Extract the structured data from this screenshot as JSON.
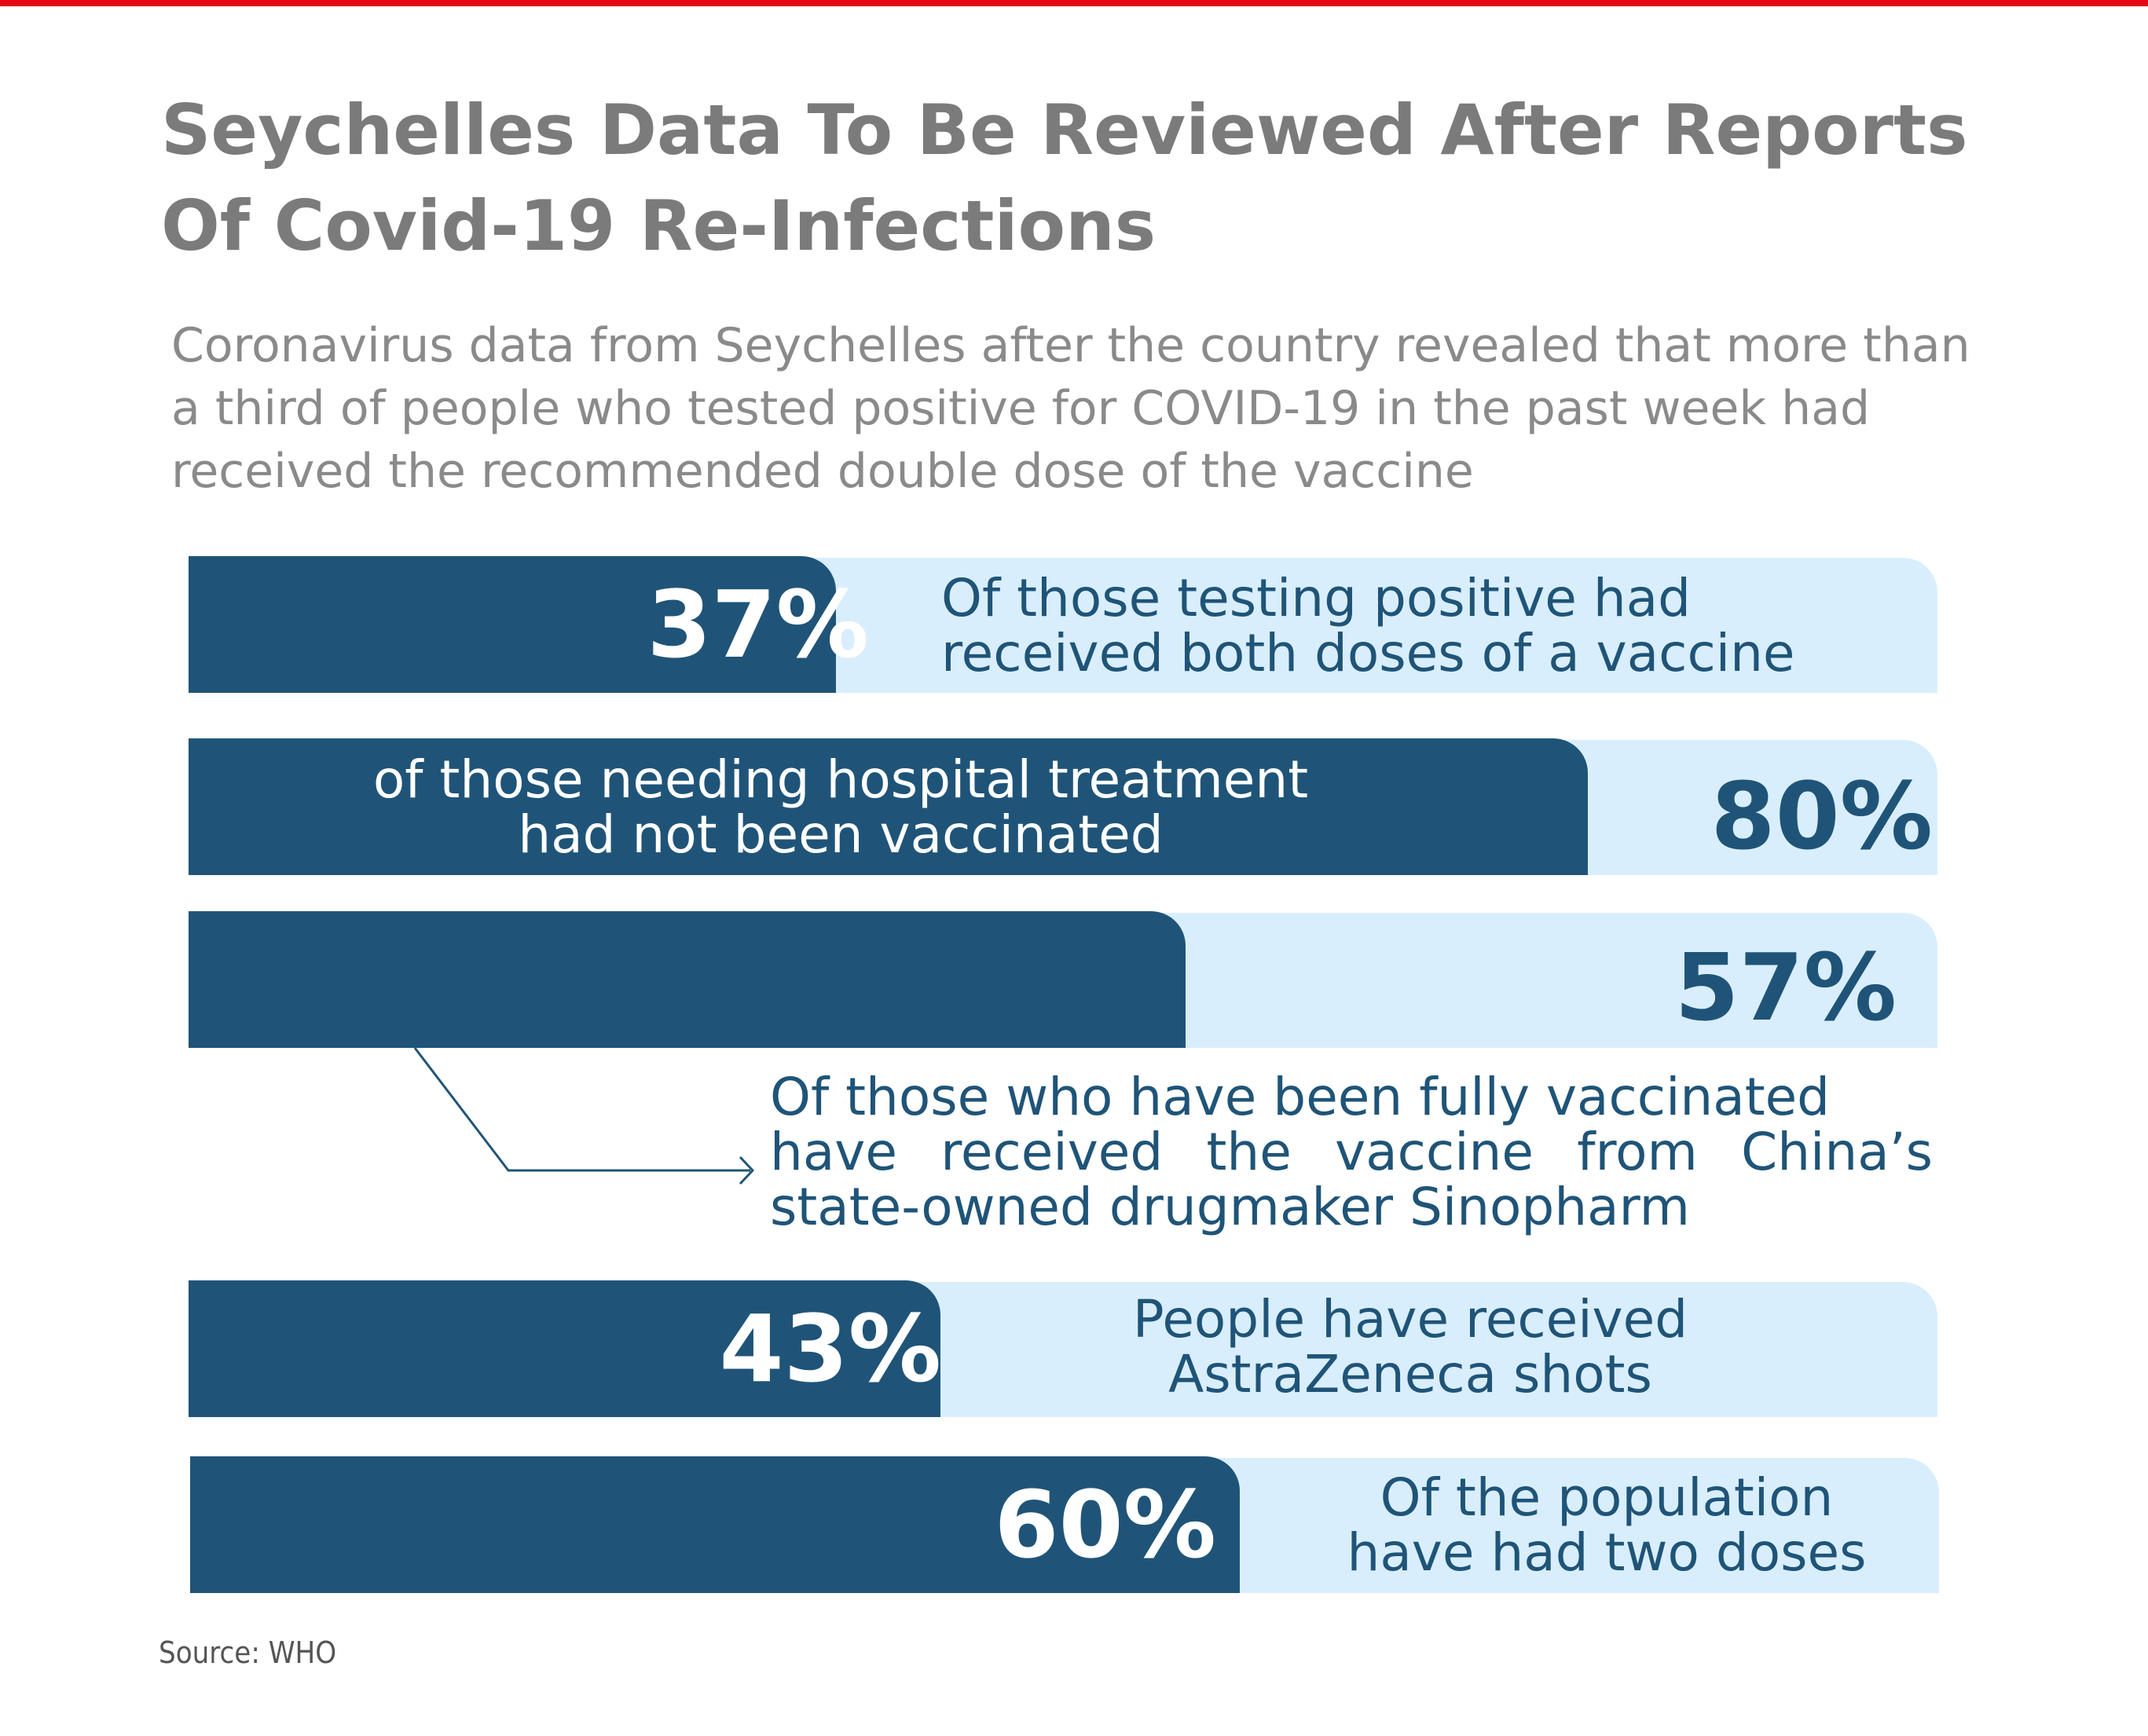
{
  "colors": {
    "accent_red": "#e30613",
    "bar_dark": "#1f5478",
    "bar_light": "#d9eefc",
    "title_gray": "#7b7b7b",
    "text_gray": "#8a8a8a",
    "white": "#ffffff"
  },
  "title": "Seychelles Data To Be Reviewed After Reports Of Covid-19 Re-Infections",
  "subtitle": "Coronavirus data from Seychelles after the country revealed that more than a third of people who tested positive for COVID-19 in the past week had received the recommended double dose of the vaccine",
  "source": "Source:  WHO",
  "chart_data": {
    "type": "bar",
    "orientation": "horizontal",
    "xlim": [
      0,
      100
    ],
    "grid": false,
    "title": "Seychelles Data To Be Reviewed After Reports Of Covid-19 Re-Infections",
    "categories": [
      "Of those testing positive had received both doses of a vaccine",
      "of those needing hospital treatment had not been vaccinated",
      "Of those who have been fully vaccinated have received the vaccine from China’s state-owned drugmaker Sinopharm",
      "People have received AstraZeneca shots",
      "Of the population have had two doses"
    ],
    "values": [
      37,
      80,
      57,
      43,
      60
    ],
    "bars": [
      {
        "value": 37,
        "label": "37%",
        "text_lines": [
          "Of those testing positive had",
          "received both doses of a vaccine"
        ]
      },
      {
        "value": 80,
        "label": "80%",
        "text_lines": [
          "of those needing hospital treatment",
          "had not been vaccinated"
        ]
      },
      {
        "value": 57,
        "label": "57%",
        "text_lines": [
          "Of those who have been fully vaccinated",
          "have received the vaccine from China’s",
          "state-owned drugmaker Sinopharm"
        ]
      },
      {
        "value": 43,
        "label": "43%",
        "text_lines": [
          "People have received",
          "AstraZeneca shots"
        ]
      },
      {
        "value": 60,
        "label": "60%",
        "text_lines": [
          "Of the population",
          "have had two doses"
        ]
      }
    ]
  }
}
